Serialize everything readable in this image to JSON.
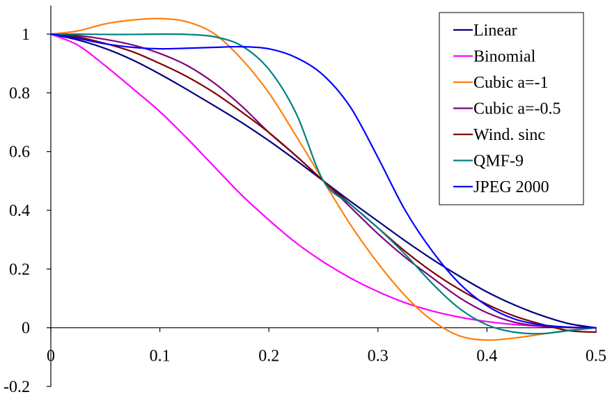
{
  "chart_data": {
    "type": "line",
    "title": "",
    "xlabel": "",
    "ylabel": "",
    "xlim": [
      0,
      0.5
    ],
    "ylim": [
      -0.2,
      1.0
    ],
    "x_ticks": [
      "0",
      "0.1",
      "0.2",
      "0.3",
      "0.4",
      "0.5"
    ],
    "x_tick_values": [
      0,
      0.1,
      0.2,
      0.3,
      0.4,
      0.5
    ],
    "y_ticks": [
      "-0.2",
      "0",
      "0.2",
      "0.4",
      "0.6",
      "0.8",
      "1"
    ],
    "y_tick_values": [
      -0.2,
      0,
      0.2,
      0.4,
      0.6,
      0.8,
      1.0
    ],
    "grid": false,
    "legend_position": "top-right",
    "x": [
      0,
      0.025,
      0.05,
      0.075,
      0.1,
      0.125,
      0.15,
      0.175,
      0.2,
      0.225,
      0.25,
      0.275,
      0.3,
      0.325,
      0.35,
      0.375,
      0.4,
      0.425,
      0.45,
      0.475,
      0.5
    ],
    "series": [
      {
        "name": "Linear",
        "color": "#000080",
        "values": [
          1.0,
          0.98,
          0.951,
          0.912,
          0.864,
          0.811,
          0.756,
          0.699,
          0.637,
          0.57,
          0.5,
          0.43,
          0.363,
          0.296,
          0.233,
          0.175,
          0.122,
          0.078,
          0.042,
          0.014,
          0.0
        ]
      },
      {
        "name": "Binomial",
        "color": "#FF00FF",
        "values": [
          1.0,
          0.962,
          0.892,
          0.815,
          0.736,
          0.645,
          0.548,
          0.452,
          0.367,
          0.289,
          0.224,
          0.169,
          0.123,
          0.085,
          0.057,
          0.036,
          0.021,
          0.011,
          0.005,
          0.002,
          0.0
        ]
      },
      {
        "name": "Cubic a=-1",
        "color": "#FF7F0E",
        "values": [
          1.0,
          1.011,
          1.035,
          1.048,
          1.053,
          1.042,
          1.001,
          0.915,
          0.8,
          0.653,
          0.5,
          0.35,
          0.22,
          0.109,
          0.024,
          -0.028,
          -0.042,
          -0.035,
          -0.022,
          -0.008,
          0.0
        ]
      },
      {
        "name": "Cubic a=-0.5",
        "color": "#800080",
        "values": [
          1.0,
          0.995,
          0.982,
          0.963,
          0.934,
          0.893,
          0.833,
          0.755,
          0.665,
          0.585,
          0.5,
          0.41,
          0.32,
          0.24,
          0.17,
          0.102,
          0.051,
          0.019,
          0.005,
          0.001,
          0.0
        ]
      },
      {
        "name": "Wind. sinc",
        "color": "#800000",
        "values": [
          1.0,
          0.99,
          0.968,
          0.94,
          0.9,
          0.855,
          0.8,
          0.735,
          0.665,
          0.585,
          0.5,
          0.42,
          0.34,
          0.26,
          0.19,
          0.13,
          0.08,
          0.04,
          0.012,
          -0.01,
          -0.015
        ]
      },
      {
        "name": "QMF-9",
        "color": "#008080",
        "values": [
          1.0,
          1.0,
          0.999,
          0.999,
          1.0,
          0.999,
          0.991,
          0.96,
          0.88,
          0.73,
          0.5,
          0.42,
          0.34,
          0.25,
          0.15,
          0.065,
          0.01,
          -0.015,
          -0.02,
          -0.01,
          0.0
        ]
      },
      {
        "name": "JPEG 2000",
        "color": "#0000FF",
        "values": [
          1.0,
          0.985,
          0.967,
          0.955,
          0.95,
          0.952,
          0.955,
          0.957,
          0.95,
          0.92,
          0.86,
          0.75,
          0.58,
          0.4,
          0.26,
          0.15,
          0.075,
          0.03,
          0.01,
          0.002,
          0.0
        ]
      }
    ]
  }
}
